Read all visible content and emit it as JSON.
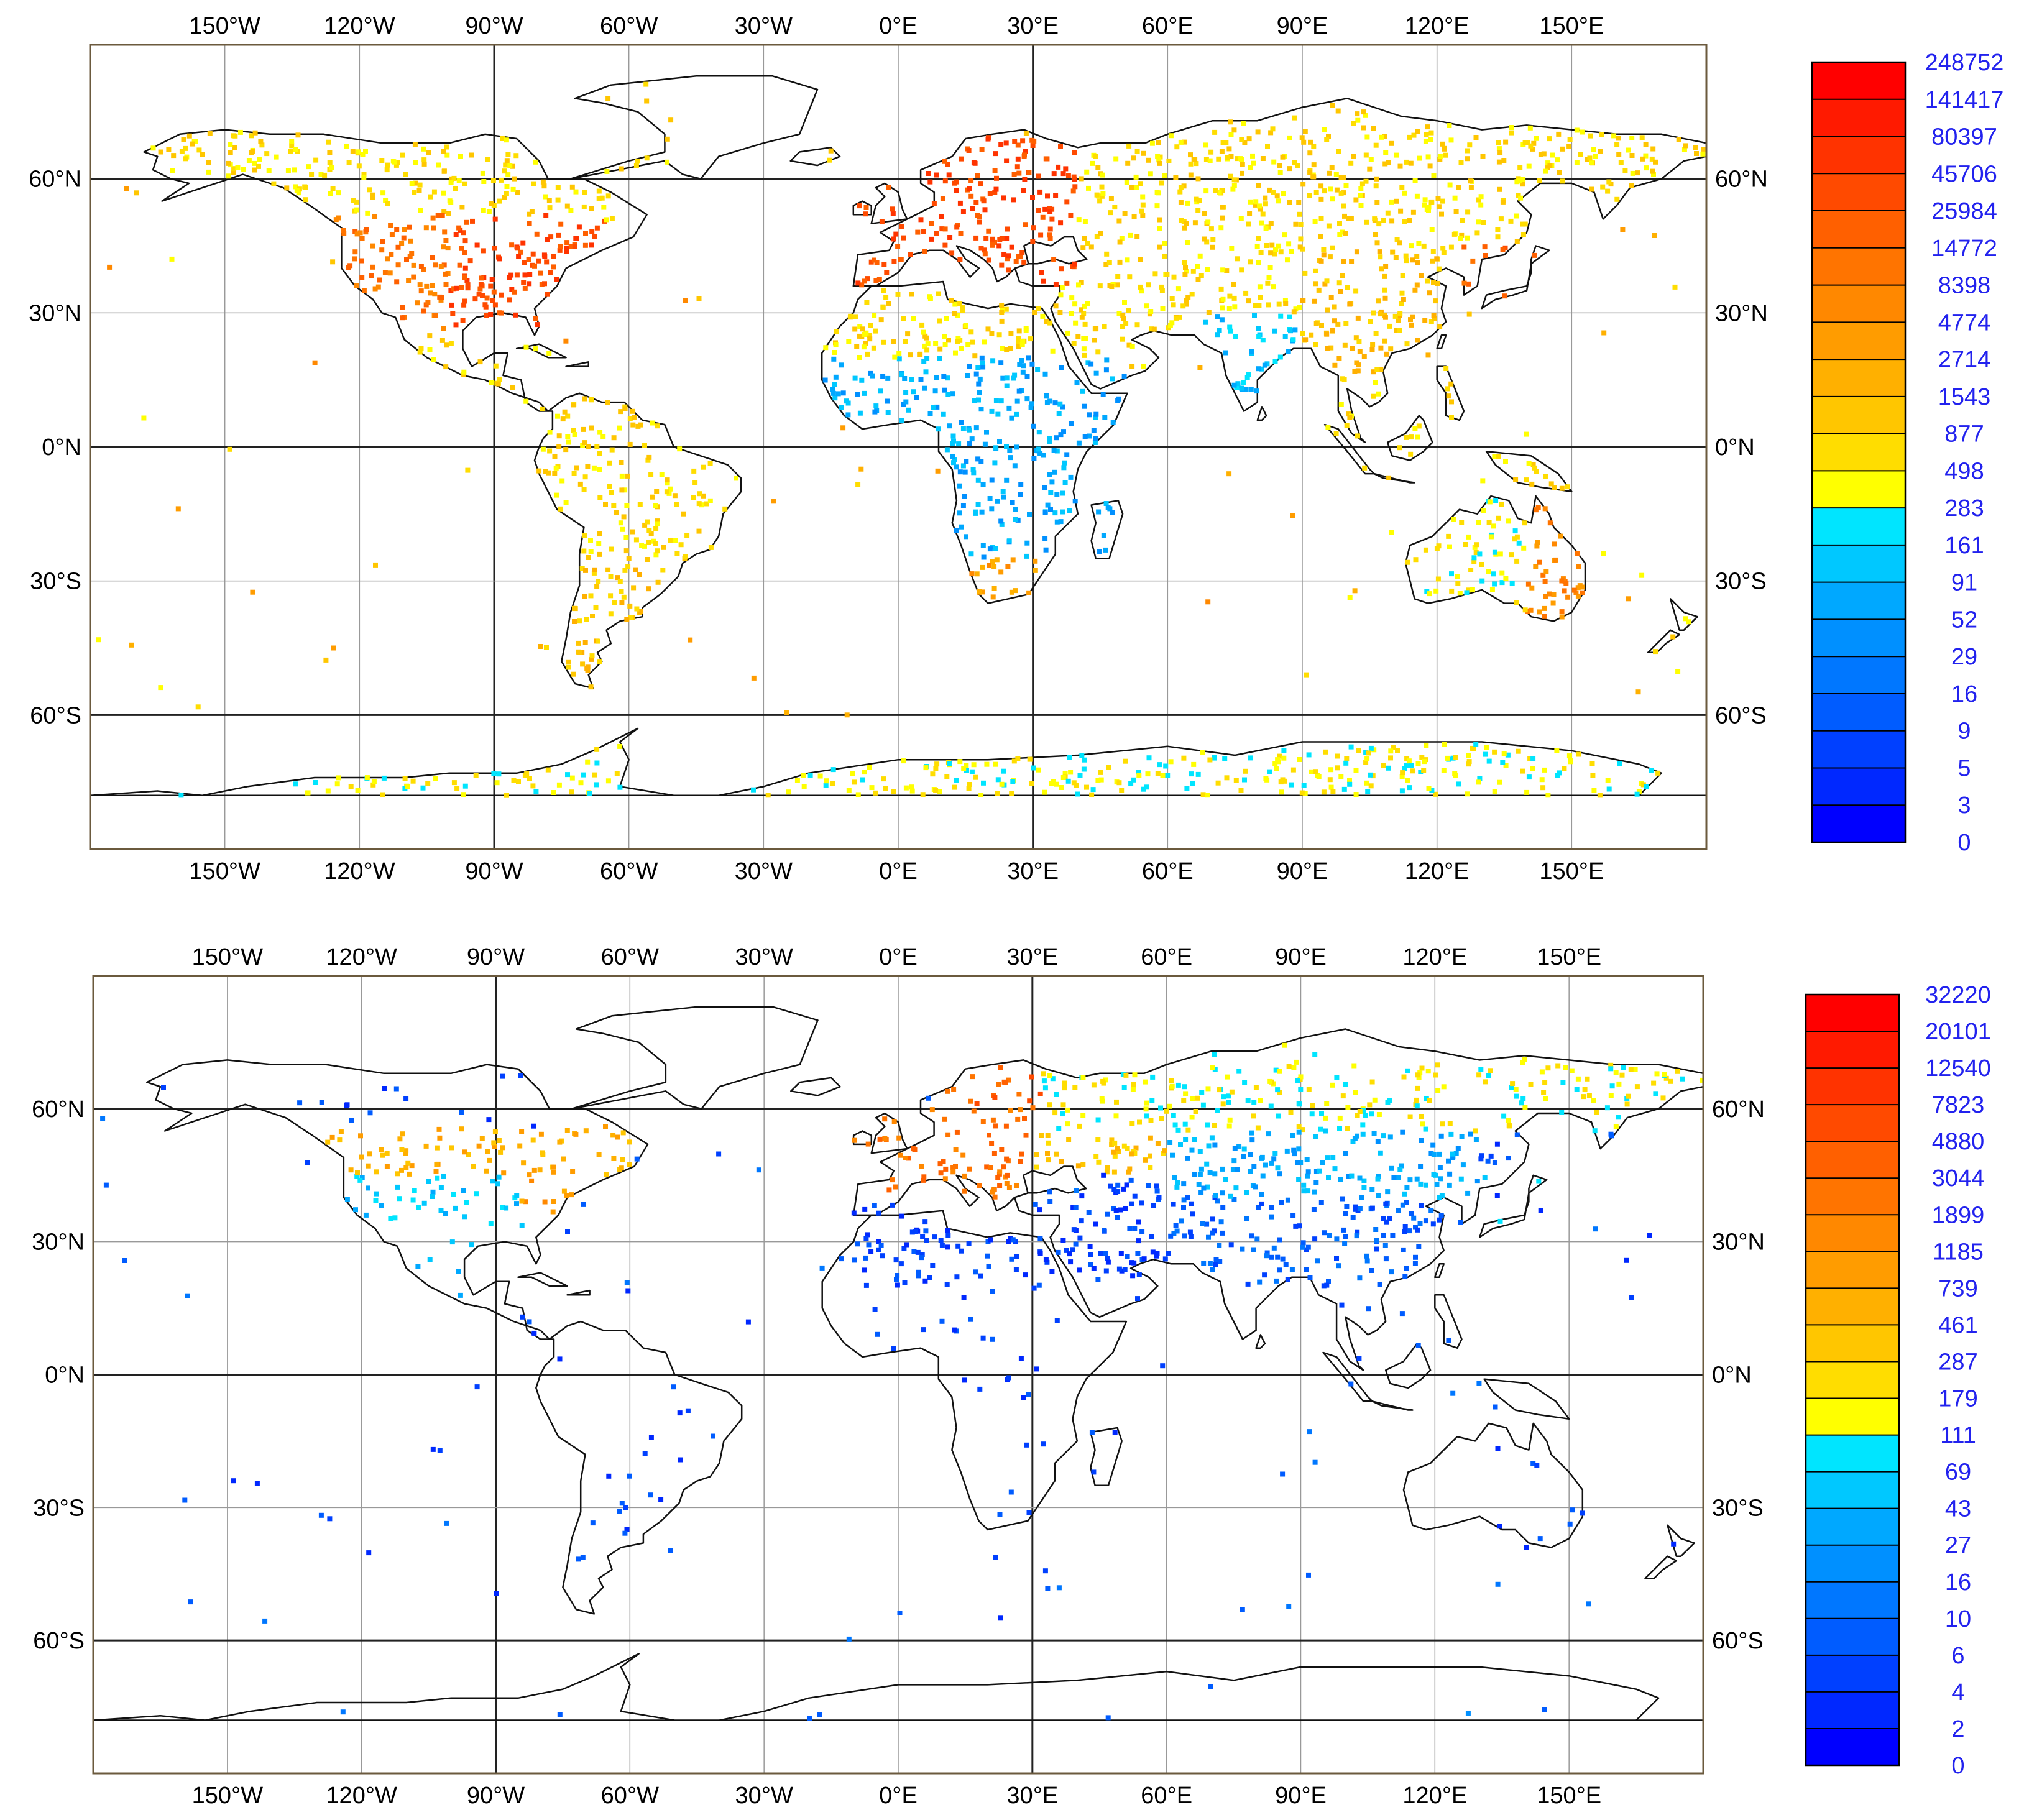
{
  "page": {
    "background": "#ffffff"
  },
  "axes": {
    "lon_ticks": [
      "150°W",
      "120°W",
      "90°W",
      "60°W",
      "30°W",
      "0°E",
      "30°E",
      "60°E",
      "90°E",
      "120°E",
      "150°E"
    ],
    "lon_values": [
      -150,
      -120,
      -90,
      -60,
      -30,
      0,
      30,
      60,
      90,
      120,
      150
    ],
    "lat_ticks": [
      "60°N",
      "30°N",
      "0°N",
      "30°S",
      "60°S"
    ],
    "lat_values": [
      60,
      30,
      0,
      -30,
      -60
    ],
    "lon_range": [
      -180,
      180
    ],
    "lat_range": [
      -90,
      90
    ],
    "major_grid_lon": [
      -90,
      30
    ],
    "major_grid_lat": [
      60,
      0,
      -60
    ]
  },
  "panels": [
    {
      "colorbar_labels": [
        "248752",
        "141417",
        "80397",
        "45706",
        "25984",
        "14772",
        "8398",
        "4774",
        "2714",
        "1543",
        "877",
        "498",
        "283",
        "161",
        "91",
        "52",
        "29",
        "16",
        "9",
        "5",
        "3",
        "0"
      ],
      "colorbar_colors": [
        "#ff0000",
        "#ff1a00",
        "#ff3300",
        "#ff4a00",
        "#ff6000",
        "#ff7400",
        "#ff8800",
        "#ff9c00",
        "#ffb000",
        "#ffc600",
        "#ffdd00",
        "#ffff00",
        "#00e5ff",
        "#00c8ff",
        "#00a8ff",
        "#0090ff",
        "#0077ff",
        "#005cff",
        "#0040ff",
        "#0028ff",
        "#0000ff"
      ]
    },
    {
      "colorbar_labels": [
        "32220",
        "20101",
        "12540",
        "7823",
        "4880",
        "3044",
        "1899",
        "1185",
        "739",
        "461",
        "287",
        "179",
        "111",
        "69",
        "43",
        "27",
        "16",
        "10",
        "6",
        "4",
        "2",
        "0"
      ],
      "colorbar_colors": [
        "#ff0000",
        "#ff1a00",
        "#ff3300",
        "#ff4a00",
        "#ff6000",
        "#ff7400",
        "#ff8800",
        "#ff9c00",
        "#ffb000",
        "#ffc600",
        "#ffdd00",
        "#ffff00",
        "#00e5ff",
        "#00c8ff",
        "#00a8ff",
        "#0090ff",
        "#0077ff",
        "#005cff",
        "#0040ff",
        "#0028ff",
        "#0000ff"
      ]
    }
  ]
}
